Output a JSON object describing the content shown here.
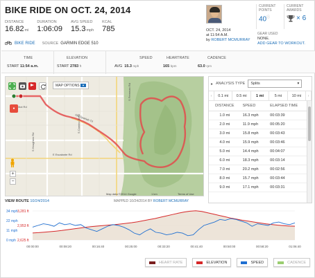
{
  "header": {
    "title": "BIKE RIDE ON OCT. 24, 2014",
    "stats": [
      {
        "label": "DISTANCE",
        "value": "16.82",
        "unit": "mi"
      },
      {
        "label": "DURATION",
        "value": "1:06:09",
        "unit": ""
      },
      {
        "label": "AVG SPEED",
        "value": "15.3",
        "unit": "mph"
      },
      {
        "label": "KCAL",
        "value": "785",
        "unit": ""
      }
    ],
    "activity_label": "BIKE RIDE",
    "source_label": "SOURCE",
    "source_value": "GARMIN EDGE 510",
    "date": "OCT. 24, 2014",
    "time": "at 11:54 A.M.",
    "by": "by",
    "author": "ROBERT MCMURRAY",
    "points_label": "CURRENT POINTS",
    "points_value": "40",
    "awards_label": "CURRENT AWARDS",
    "awards_value": "× 6",
    "gear_label": "GEAR USED",
    "gear_value": "NONE.",
    "gear_link": "ADD GEAR TO WORKOUT."
  },
  "summary": {
    "time_h": "TIME",
    "time_start": "START",
    "time_value": "11:54 a.m.",
    "elev_h": "ELEVATION",
    "elev_start": "START",
    "elev_value": "2783",
    "elev_unit": "ft",
    "speed_h": "SPEED",
    "speed_avg": "AVG",
    "speed_value": "15.3",
    "speed_unit": "mph",
    "hr_h": "HEARTRATE",
    "hr_value": "165",
    "hr_unit": "bpm",
    "cad_h": "CADENCE",
    "cad_value": "63.0",
    "cad_unit": "rpm"
  },
  "map": {
    "options_label": "MAP OPTIONS",
    "view_route": "VIEW ROUTE",
    "view_route_date": "10/24/2014",
    "mapped_label": "MAPPED 10/24/2014",
    "mapped_by": "BY",
    "mapped_author": "ROBERT MCMURRAY",
    "roads": [
      "E Elliot Rd",
      "E Escalante Rd",
      "S Freeman Rd",
      "Old Spanish Trl",
      "S Camino Seco",
      "S Houghton Rd"
    ],
    "attribution": "Map data ©2014 Google",
    "scale": "1 km",
    "terms": "Terms of Use"
  },
  "analysis": {
    "type_label": "ANALYSIS TYPE",
    "type_value": "Splits",
    "intervals": [
      "0.1 mi",
      "0.5 mi",
      "1 mi",
      "5 mi",
      "10 mi"
    ],
    "active_interval": "1 mi",
    "columns": [
      "DISTANCE",
      "SPEED",
      "ELAPSED TIME"
    ],
    "rows": [
      [
        "1.0 mi",
        "16.3 mph",
        "00:03:39"
      ],
      [
        "2.0 mi",
        "11.9 mph",
        "00:05:20"
      ],
      [
        "3.0 mi",
        "15.8 mph",
        "00:03:43"
      ],
      [
        "4.0 mi",
        "15.9 mph",
        "00:03:46"
      ],
      [
        "5.0 mi",
        "14.4 mph",
        "00:04:07"
      ],
      [
        "6.0 mi",
        "18.3 mph",
        "00:03:14"
      ],
      [
        "7.0 mi",
        "20.2 mph",
        "00:02:56"
      ],
      [
        "8.0 mi",
        "15.7 mph",
        "00:03:44"
      ],
      [
        "9.0 mi",
        "17.1 mph",
        "00:03:31"
      ]
    ]
  },
  "chart_data": {
    "type": "line",
    "left_axis": [
      "34 mph",
      "22 mph",
      "11 mph",
      "0 mph"
    ],
    "right_axis": [
      "3,281 ft",
      "2,953 ft",
      "2,625 ft"
    ],
    "x_ticks": [
      "00:00:00",
      "00:08:20",
      "00:16:40",
      "00:25:00",
      "00:33:20",
      "00:41:40",
      "00:50:00",
      "00:58:20",
      "01:06:40"
    ],
    "legend": [
      {
        "name": "HEART RATE",
        "color": "#7a1f1f",
        "active": false
      },
      {
        "name": "ELEVATION",
        "color": "#d62728",
        "active": true
      },
      {
        "name": "SPEED",
        "color": "#1f6fd1",
        "active": true
      },
      {
        "name": "CADENCE",
        "color": "#9acd70",
        "active": false
      }
    ],
    "elevation_ft": [
      2783,
      2790,
      2800,
      2812,
      2825,
      2840,
      2858,
      2875,
      2892,
      2910,
      2925,
      2938,
      2950,
      2960,
      2970,
      2985,
      3000,
      3015,
      3035,
      3060,
      3085,
      3110,
      3140,
      3170,
      3200,
      3230,
      3255,
      3275,
      3285,
      3270,
      3240,
      3210,
      3180,
      3150,
      3120,
      3095,
      3070,
      3050,
      3030,
      3010,
      2990,
      2975,
      2960,
      2950,
      2940,
      2935
    ],
    "speed_mph": [
      15,
      17,
      19,
      18,
      16,
      20,
      18,
      19,
      17,
      18,
      14,
      12,
      10,
      13,
      16,
      18,
      17,
      15,
      12,
      8,
      6,
      10,
      13,
      9,
      8,
      6,
      7,
      9,
      8,
      5,
      6,
      12,
      17,
      19,
      21,
      24,
      23,
      25,
      24,
      22,
      20,
      16,
      19,
      18,
      17,
      20,
      21,
      19,
      18,
      20
    ]
  }
}
